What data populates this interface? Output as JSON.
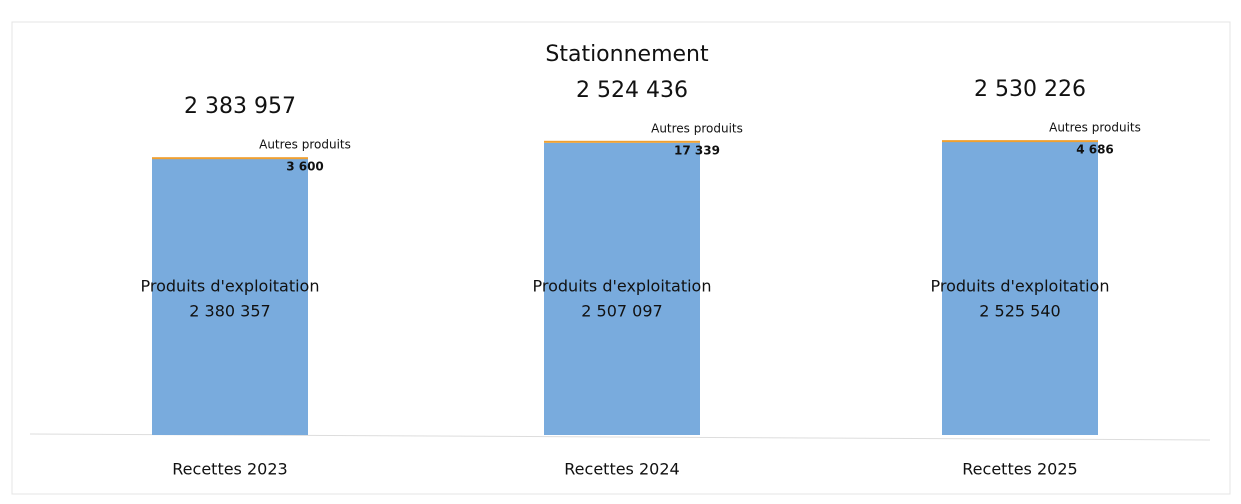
{
  "chart_data": {
    "type": "bar",
    "stacked": true,
    "title": "Stationnement",
    "categories": [
      "Recettes 2023",
      "Recettes 2024",
      "Recettes 2025"
    ],
    "series": [
      {
        "name": "Produits d'exploitation",
        "color": "#79abdd",
        "values": [
          2380357,
          2507097,
          2525540
        ],
        "value_labels": [
          "2 380 357",
          "2 507 097",
          "2 525 540"
        ]
      },
      {
        "name": "Autres produits",
        "color": "#f0a030",
        "values": [
          3600,
          17339,
          4686
        ],
        "value_labels": [
          "3 600",
          "17 339",
          "4 686"
        ]
      }
    ],
    "totals": [
      2383957,
      2524436,
      2530226
    ],
    "total_labels": [
      "2 383 957",
      "2 524 436",
      "2 530 226"
    ],
    "ylim": [
      0,
      2600000
    ]
  }
}
